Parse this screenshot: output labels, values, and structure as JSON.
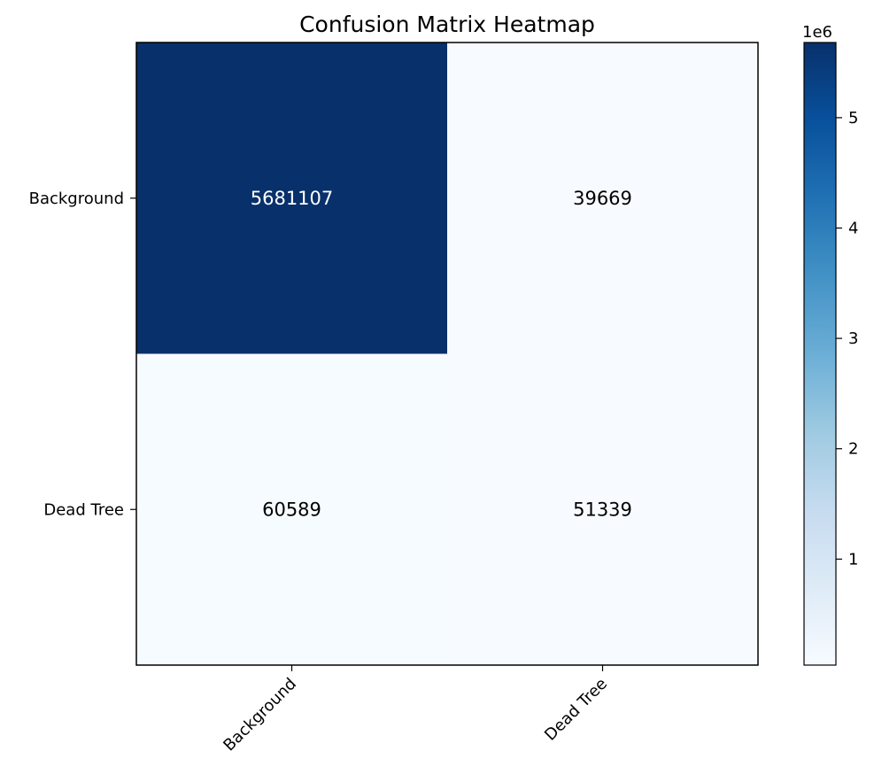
{
  "chart_data": {
    "type": "heatmap",
    "title": "Confusion Matrix Heatmap",
    "row_labels": [
      "Background",
      "Dead Tree"
    ],
    "col_labels": [
      "Background",
      "Dead Tree"
    ],
    "values": [
      [
        5681107,
        39669
      ],
      [
        60589,
        51339
      ]
    ],
    "colormap": "Blues",
    "colorbar": {
      "range": [
        39669,
        5681107
      ],
      "ticks": [
        1,
        2,
        3,
        4,
        5
      ],
      "tick_labels": [
        "1",
        "2",
        "3",
        "4",
        "5"
      ],
      "offset_label": "1e6"
    },
    "colors": {
      "low": "#f7fbff",
      "high": "#08306b"
    }
  }
}
